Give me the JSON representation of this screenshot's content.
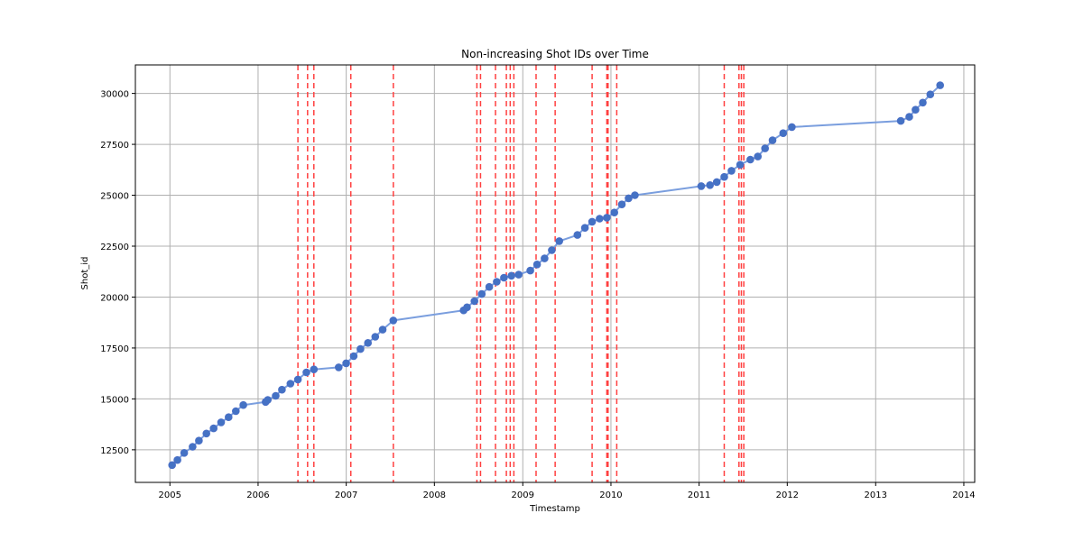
{
  "chart_data": {
    "type": "line",
    "title": "Non-increasing Shot IDs over Time",
    "xlabel": "Timestamp",
    "ylabel": "Shot_id",
    "xlim": [
      "2004-08-11",
      "2014-02-15"
    ],
    "ylim": [
      10900,
      31400
    ],
    "x_ticks": [
      "2005",
      "2006",
      "2007",
      "2008",
      "2009",
      "2010",
      "2011",
      "2012",
      "2013",
      "2014"
    ],
    "y_ticks": [
      12500,
      15000,
      17500,
      20000,
      22500,
      25000,
      27500,
      30000
    ],
    "grid": true,
    "colors": {
      "series": "#4472c4",
      "line": "#7a9ede",
      "marker_edge": "#4a6fc6",
      "vlines": "#ff4040"
    },
    "series": [
      {
        "x": [
          "2005-01-10",
          "2005-02-01",
          "2005-03-01",
          "2005-04-05",
          "2005-05-01",
          "2005-06-01",
          "2005-07-01",
          "2005-08-01",
          "2005-09-01",
          "2005-10-01",
          "2005-11-01",
          "2006-02-01",
          "2006-02-10",
          "2006-03-15",
          "2006-04-10",
          "2006-05-15",
          "2006-06-15",
          "2006-07-20",
          "2006-08-20",
          "2006-12-01",
          "2007-01-01",
          "2007-02-01",
          "2007-03-01",
          "2007-04-01",
          "2007-05-01",
          "2007-06-01",
          "2007-07-15",
          "2008-05-01",
          "2008-05-15",
          "2008-06-15",
          "2008-07-15",
          "2008-08-15",
          "2008-09-15",
          "2008-10-15",
          "2008-11-15",
          "2008-12-15",
          "2009-02-01",
          "2009-03-01",
          "2009-04-01",
          "2009-05-01",
          "2009-06-01",
          "2009-08-15",
          "2009-09-15",
          "2009-10-15",
          "2009-11-15",
          "2009-12-15",
          "2010-01-15",
          "2010-02-15",
          "2010-03-15",
          "2010-04-10",
          "2011-01-10",
          "2011-02-15",
          "2011-03-15",
          "2011-04-15",
          "2011-05-15",
          "2011-06-20",
          "2011-08-01",
          "2011-09-01",
          "2011-10-01",
          "2011-11-01",
          "2011-12-15",
          "2012-01-20",
          "2013-04-15",
          "2013-05-20",
          "2013-06-15",
          "2013-07-15",
          "2013-08-15",
          "2013-09-25"
        ],
        "y": [
          11750,
          12000,
          12350,
          12650,
          12950,
          13300,
          13550,
          13850,
          14100,
          14400,
          14700,
          14850,
          14950,
          15150,
          15450,
          15750,
          15950,
          16300,
          16450,
          16550,
          16750,
          17100,
          17450,
          17750,
          18050,
          18400,
          18850,
          19350,
          19500,
          19800,
          20150,
          20500,
          20750,
          20950,
          21050,
          21100,
          21300,
          21600,
          21900,
          22300,
          22750,
          23050,
          23400,
          23700,
          23850,
          23900,
          24150,
          24550,
          24850,
          25000,
          25450,
          25500,
          25650,
          25900,
          26200,
          26500,
          26750,
          26900,
          27300,
          27700,
          28050,
          28350,
          28650,
          28850,
          29200,
          29550,
          29950,
          30400
        ]
      }
    ],
    "vlines": [
      "2006-06-15",
      "2006-07-25",
      "2006-08-20",
      "2007-01-20",
      "2007-07-15",
      "2008-06-25",
      "2008-07-10",
      "2008-09-10",
      "2008-10-25",
      "2008-11-10",
      "2008-11-25",
      "2009-02-25",
      "2009-05-15",
      "2009-10-15",
      "2009-12-15",
      "2009-12-20",
      "2010-01-25",
      "2011-04-15",
      "2011-06-15",
      "2011-06-25",
      "2011-07-05"
    ]
  }
}
